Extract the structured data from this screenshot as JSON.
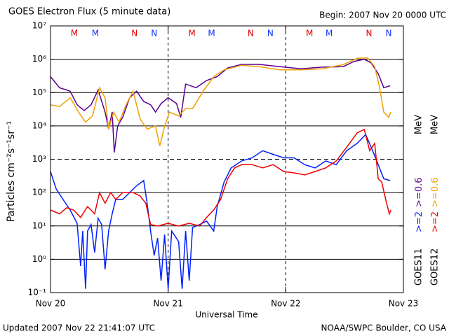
{
  "chart_data": {
    "type": "line",
    "title": "GOES Electron Flux (5 minute data)",
    "subtitle": "Begin: 2007 Nov 20 0000 UTC",
    "x_label": "Universal Time",
    "y_label": "Particles cm⁻²s⁻¹sr⁻¹",
    "footer_left": "Updated 2007 Nov 22 21:41:07 UTC",
    "footer_right": "NOAA/SWPC Boulder, CO USA",
    "yscale": "log",
    "xlim": [
      0,
      3
    ],
    "xticks": [
      {
        "value": 0,
        "label": "Nov 20"
      },
      {
        "value": 1,
        "label": "Nov 21"
      },
      {
        "value": 2,
        "label": "Nov 22"
      },
      {
        "value": 3,
        "label": "Nov 23"
      }
    ],
    "ylim": [
      0.1,
      10000000
    ],
    "yticks": [
      {
        "value": 0.1,
        "label": "10⁻¹"
      },
      {
        "value": 1,
        "label": "10⁰"
      },
      {
        "value": 10,
        "label": "10¹"
      },
      {
        "value": 100,
        "label": "10²"
      },
      {
        "value": 1000,
        "label": "10³"
      },
      {
        "value": 10000,
        "label": "10⁴"
      },
      {
        "value": 100000,
        "label": "10⁵"
      },
      {
        "value": 1000000,
        "label": "10⁶"
      },
      {
        "value": 10000000,
        "label": "10⁷"
      }
    ],
    "grid": true,
    "threshold": 1000,
    "legend_unit": "MeV",
    "markers": [
      {
        "label": "M",
        "color": "#e00000",
        "x": 0.202
      },
      {
        "label": "M",
        "color": "#1030ff",
        "x": 0.381
      },
      {
        "label": "N",
        "color": "#e00000",
        "x": 0.714
      },
      {
        "label": "N",
        "color": "#1030ff",
        "x": 0.881
      },
      {
        "label": "M",
        "color": "#e00000",
        "x": 1.202
      },
      {
        "label": "M",
        "color": "#1030ff",
        "x": 1.369
      },
      {
        "label": "N",
        "color": "#e00000",
        "x": 1.702
      },
      {
        "label": "N",
        "color": "#1030ff",
        "x": 1.869
      },
      {
        "label": "M",
        "color": "#e00000",
        "x": 2.202
      },
      {
        "label": "M",
        "color": "#1030ff",
        "x": 2.369
      },
      {
        "label": "N",
        "color": "#e00000",
        "x": 2.708
      },
      {
        "label": "N",
        "color": "#1030ff",
        "x": 2.875
      }
    ],
    "groups": [
      {
        "name": "GOES11",
        "series": [
          {
            "name": ">=2",
            "color": "#0020ff",
            "x": [
              0,
              0.048,
              0.107,
              0.167,
              0.226,
              0.256,
              0.274,
              0.298,
              0.315,
              0.345,
              0.375,
              0.405,
              0.435,
              0.464,
              0.494,
              0.524,
              0.554,
              0.613,
              0.673,
              0.732,
              0.792,
              0.821,
              0.851,
              0.881,
              0.911,
              0.94,
              0.97,
              1.0,
              1.03,
              1.089,
              1.119,
              1.149,
              1.179,
              1.208,
              1.268,
              1.327,
              1.387,
              1.417,
              1.476,
              1.536,
              1.625,
              1.714,
              1.804,
              1.893,
              1.982,
              2.071,
              2.161,
              2.25,
              2.339,
              2.429,
              2.518,
              2.607,
              2.679,
              2.726,
              2.786,
              2.833,
              2.887
            ],
            "values": [
              430,
              130,
              62,
              30,
              12,
              0.63,
              7,
              0.13,
              7,
              11,
              1.6,
              17,
              11,
              0.5,
              7,
              23,
              62,
              62,
              100,
              160,
              230,
              48,
              7,
              1.3,
              4.3,
              0.23,
              5.5,
              0.13,
              7,
              3.4,
              0.13,
              7,
              0.23,
              9,
              11,
              14,
              7,
              38,
              210,
              550,
              890,
              1100,
              1800,
              1400,
              1100,
              1100,
              690,
              550,
              890,
              690,
              1800,
              3000,
              5500,
              2300,
              690,
              260,
              230
            ]
          },
          {
            "name": ">=0.6",
            "color": "#5a0090",
            "x": [
              0,
              0.077,
              0.167,
              0.226,
              0.286,
              0.345,
              0.405,
              0.464,
              0.494,
              0.524,
              0.542,
              0.571,
              0.613,
              0.673,
              0.732,
              0.792,
              0.851,
              0.893,
              0.94,
              1.0,
              1.071,
              1.107,
              1.149,
              1.238,
              1.327,
              1.417,
              1.506,
              1.625,
              1.774,
              1.952,
              2.131,
              2.31,
              2.488,
              2.577,
              2.667,
              2.726,
              2.786,
              2.833,
              2.887
            ],
            "values": [
              300000,
              140000,
              110000,
              43000,
              29000,
              43000,
              120000,
              26000,
              8000,
              26000,
              1600,
              10000,
              18000,
              70000,
              110000,
              54000,
              43000,
              26000,
              47000,
              70000,
              47000,
              18000,
              180000,
              140000,
              230000,
              300000,
              550000,
              700000,
              700000,
              600000,
              520000,
              580000,
              600000,
              850000,
              1000000,
              770000,
              370000,
              140000,
              160000
            ]
          }
        ]
      },
      {
        "name": "GOES12",
        "series": [
          {
            "name": ">=2",
            "color": "#ee0000",
            "x": [
              0,
              0.077,
              0.137,
              0.196,
              0.256,
              0.315,
              0.375,
              0.417,
              0.464,
              0.512,
              0.554,
              0.613,
              0.702,
              0.762,
              0.81,
              0.851,
              0.911,
              1.0,
              1.089,
              1.179,
              1.268,
              1.327,
              1.387,
              1.446,
              1.506,
              1.565,
              1.625,
              1.714,
              1.804,
              1.893,
              1.982,
              2.071,
              2.161,
              2.25,
              2.339,
              2.429,
              2.518,
              2.607,
              2.667,
              2.714,
              2.756,
              2.786,
              2.815,
              2.857,
              2.881,
              2.893
            ],
            "values": [
              30,
              23,
              35,
              30,
              18,
              38,
              23,
              100,
              48,
              100,
              62,
              100,
              100,
              79,
              48,
              11,
              10,
              12,
              10,
              12,
              10,
              18,
              30,
              62,
              260,
              550,
              690,
              690,
              550,
              690,
              430,
              390,
              340,
              430,
              550,
              890,
              2300,
              6200,
              7800,
              1800,
              3000,
              260,
              210,
              48,
              23,
              30
            ]
          },
          {
            "name": ">=0.6",
            "color": "#f0a000",
            "x": [
              0,
              0.077,
              0.167,
              0.238,
              0.298,
              0.357,
              0.417,
              0.464,
              0.494,
              0.536,
              0.583,
              0.643,
              0.702,
              0.762,
              0.821,
              0.893,
              0.929,
              0.97,
              1.012,
              1.089,
              1.149,
              1.208,
              1.298,
              1.387,
              1.476,
              1.625,
              1.774,
              1.952,
              2.131,
              2.31,
              2.488,
              2.607,
              2.696,
              2.756,
              2.798,
              2.833,
              2.875,
              2.893
            ],
            "values": [
              43000,
              38000,
              70000,
              26000,
              13000,
              20000,
              140000,
              70000,
              8000,
              26000,
              13000,
              43000,
              110000,
              16000,
              8000,
              10000,
              2500,
              10000,
              26000,
              20000,
              33000,
              33000,
              110000,
              300000,
              480000,
              660000,
              600000,
              480000,
              480000,
              520000,
              690000,
              1070000,
              1100000,
              600000,
              140000,
              26000,
              18000,
              26000
            ]
          }
        ]
      }
    ]
  }
}
